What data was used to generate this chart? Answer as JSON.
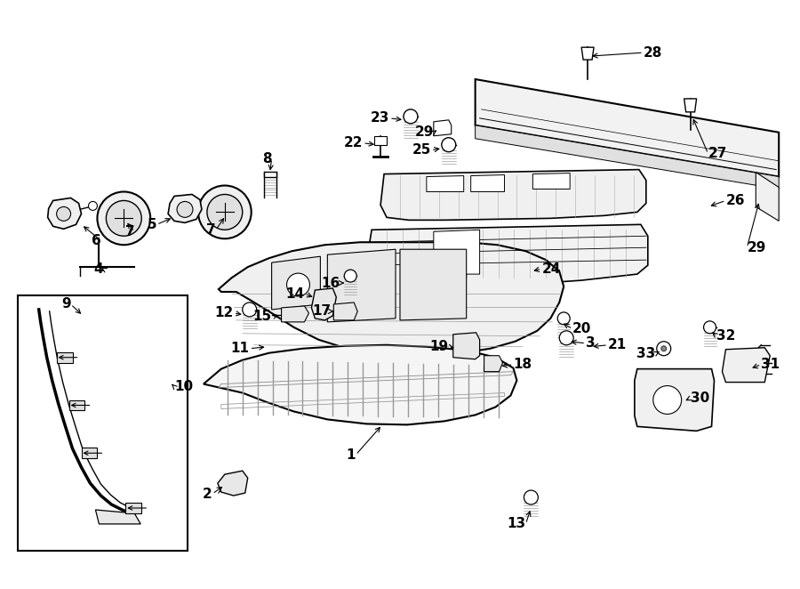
{
  "background_color": "#ffffff",
  "line_color": "#000000",
  "figsize": [
    9.0,
    6.62
  ],
  "dpi": 100,
  "labels": [
    [
      "1",
      440,
      530,
      400,
      510,
      "left"
    ],
    [
      "2",
      248,
      555,
      265,
      545,
      "left"
    ],
    [
      "3",
      670,
      385,
      645,
      385,
      "left"
    ],
    [
      "4",
      130,
      300,
      130,
      285,
      "center"
    ],
    [
      "5",
      185,
      250,
      200,
      258,
      "left"
    ],
    [
      "6",
      118,
      268,
      108,
      258,
      "left"
    ],
    [
      "7",
      152,
      258,
      148,
      252,
      "left"
    ],
    [
      "7",
      240,
      255,
      232,
      250,
      "left"
    ],
    [
      "8",
      308,
      178,
      308,
      192,
      "center"
    ],
    [
      "9",
      82,
      342,
      100,
      355,
      "center"
    ],
    [
      "10",
      198,
      435,
      185,
      435,
      "right"
    ],
    [
      "11",
      284,
      390,
      302,
      393,
      "left"
    ],
    [
      "12",
      268,
      358,
      278,
      362,
      "left"
    ],
    [
      "13",
      600,
      588,
      600,
      572,
      "center"
    ],
    [
      "14",
      350,
      328,
      360,
      335,
      "left"
    ],
    [
      "15",
      310,
      355,
      322,
      355,
      "left"
    ],
    [
      "16",
      385,
      315,
      393,
      320,
      "left"
    ],
    [
      "17",
      378,
      348,
      388,
      345,
      "left"
    ],
    [
      "18",
      572,
      408,
      558,
      410,
      "left"
    ],
    [
      "19",
      510,
      388,
      522,
      392,
      "left"
    ],
    [
      "20",
      648,
      368,
      630,
      368,
      "left"
    ],
    [
      "21",
      692,
      385,
      672,
      388,
      "left"
    ],
    [
      "22",
      408,
      158,
      422,
      165,
      "left"
    ],
    [
      "23",
      440,
      130,
      455,
      138,
      "left"
    ],
    [
      "24",
      618,
      298,
      600,
      302,
      "left"
    ],
    [
      "25",
      490,
      165,
      506,
      170,
      "left"
    ],
    [
      "26",
      818,
      220,
      796,
      228,
      "left"
    ],
    [
      "27",
      800,
      168,
      778,
      175,
      "left"
    ],
    [
      "28",
      728,
      55,
      705,
      65,
      "left"
    ],
    [
      "29",
      490,
      145,
      504,
      148,
      "left"
    ],
    [
      "29",
      838,
      275,
      838,
      262,
      "center"
    ],
    [
      "30",
      780,
      445,
      768,
      445,
      "left"
    ],
    [
      "31",
      860,
      408,
      842,
      415,
      "left"
    ],
    [
      "32",
      800,
      378,
      812,
      382,
      "left"
    ],
    [
      "33",
      745,
      395,
      750,
      400,
      "left"
    ]
  ]
}
